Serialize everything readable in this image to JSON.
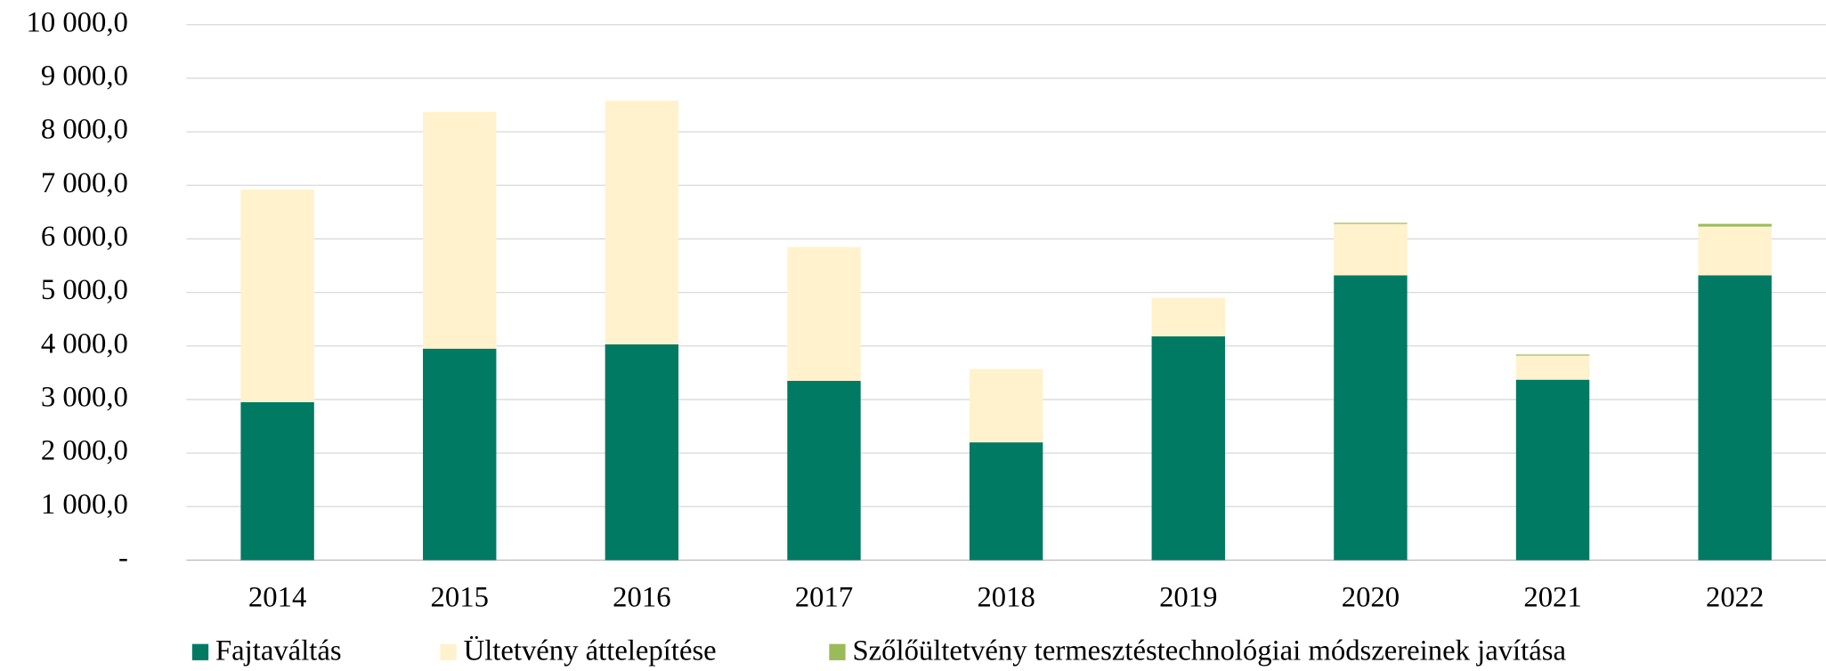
{
  "chart_data": {
    "type": "stacked_bar",
    "categories": [
      "2014",
      "2015",
      "2016",
      "2017",
      "2018",
      "2019",
      "2020",
      "2021",
      "2022"
    ],
    "series": [
      {
        "name": "Fajtaváltás",
        "color": "#007a63",
        "values": [
          2950,
          3950,
          4030,
          3350,
          2200,
          4180,
          5320,
          3370,
          5320
        ]
      },
      {
        "name": "Ültetvény áttelepítése",
        "color": "#fff2cc",
        "values": [
          3970,
          4420,
          4550,
          2500,
          1370,
          720,
          960,
          450,
          910
        ]
      },
      {
        "name": "Szőlőültetvény termesztéstechnológiai módszereinek javítása",
        "color": "#9bbb59",
        "values": [
          0,
          0,
          0,
          0,
          0,
          0,
          20,
          20,
          50
        ]
      }
    ],
    "ylim": [
      0,
      10000
    ],
    "yticks": [
      {
        "value": 0,
        "label": "-"
      },
      {
        "value": 1000,
        "label": "1 000,0"
      },
      {
        "value": 2000,
        "label": "2 000,0"
      },
      {
        "value": 3000,
        "label": "3 000,0"
      },
      {
        "value": 4000,
        "label": "4 000,0"
      },
      {
        "value": 5000,
        "label": "5 000,0"
      },
      {
        "value": 6000,
        "label": "6 000,0"
      },
      {
        "value": 7000,
        "label": "7 000,0"
      },
      {
        "value": 8000,
        "label": "8 000,0"
      },
      {
        "value": 9000,
        "label": "9 000,0"
      },
      {
        "value": 10000,
        "label": "10 000,0"
      }
    ],
    "grid": true,
    "legend": "bottom"
  }
}
